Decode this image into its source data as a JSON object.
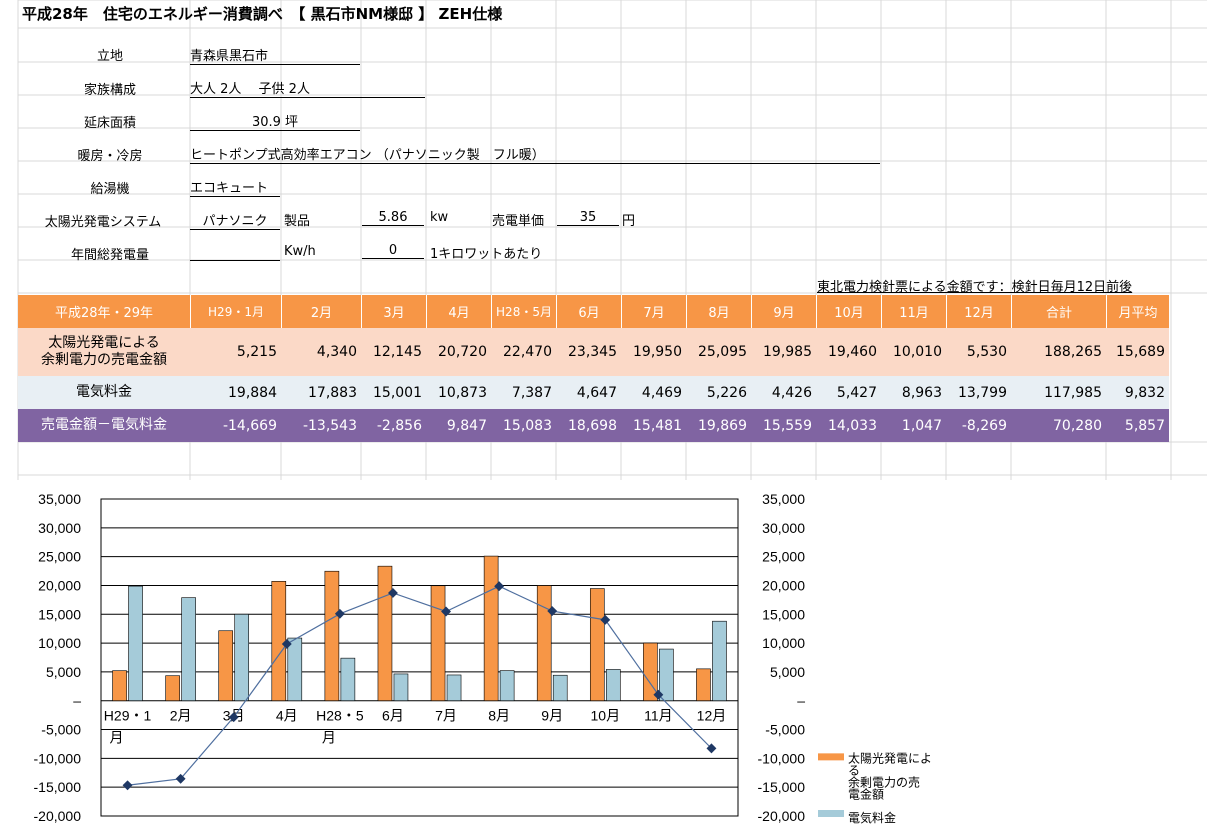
{
  "title": "平成28年　住宅のエネルギー消費調べ　【 黒石市NM様邸 】 ZEH仕様",
  "info": {
    "location_label": "立地",
    "location_value": "青森県黒石市",
    "family_label": "家族構成",
    "family_value": "大人 2人　 子供 2人",
    "area_label": "延床面積",
    "area_value": "30.9 坪",
    "heating_label": "暖房・冷房",
    "heating_value": "ヒートポンプ式高効率エアコン （パナソニック製　フル暖）",
    "water_label": "給湯機",
    "water_value": "エコキュート",
    "solar_label": "太陽光発電システム",
    "solar_maker": "パナソニク",
    "solar_product": "製品",
    "solar_kw": "5.86",
    "solar_kw_unit": "kw",
    "price_label": "売電単価",
    "price_value": "35",
    "price_unit": "円",
    "annual_label": "年間総発電量",
    "annual_unit": "Kw/h",
    "annual_value": "0",
    "annual_note": "1キロワットあたり"
  },
  "note": "東北電力検針票による金額です：検針日毎月12日前後",
  "table": {
    "header_label": "平成28年・29年",
    "months": [
      "H29・1月",
      "2月",
      "3月",
      "4月",
      "H28・5月",
      "6月",
      "7月",
      "8月",
      "9月",
      "10月",
      "11月",
      "12月",
      "合計",
      "月平均"
    ],
    "rows": [
      {
        "label1": "太陽光発電による",
        "label2": "余剰電力の売電金額",
        "values": [
          "5,215",
          "4,340",
          "12,145",
          "20,720",
          "22,470",
          "23,345",
          "19,950",
          "25,095",
          "19,985",
          "19,460",
          "10,010",
          "5,530",
          "188,265",
          "15,689"
        ]
      },
      {
        "label1": "電気料金",
        "label2": "",
        "values": [
          "19,884",
          "17,883",
          "15,001",
          "10,873",
          "7,387",
          "4,647",
          "4,469",
          "5,226",
          "4,426",
          "5,427",
          "8,963",
          "13,799",
          "117,985",
          "9,832"
        ]
      },
      {
        "label1": "売電金額－電気料金",
        "label2": "",
        "values": [
          "-14,669",
          "-13,543",
          "-2,856",
          "9,847",
          "15,083",
          "18,698",
          "15,481",
          "19,869",
          "15,559",
          "14,033",
          "1,047",
          "-8,269",
          "70,280",
          "5,857"
        ]
      }
    ]
  },
  "colors": {
    "orange": "#f79646",
    "blue": "#a5cbd9",
    "purple": "#8064a2",
    "line": "#1f3864"
  },
  "chart_data": {
    "type": "bar",
    "categories": [
      "H29・1月",
      "2月",
      "3月",
      "4月",
      "H28・5月",
      "6月",
      "7月",
      "8月",
      "9月",
      "10月",
      "11月",
      "12月"
    ],
    "series": [
      {
        "name": "太陽光発電による余剰電力の売電金額",
        "type": "bar",
        "values": [
          5215,
          4340,
          12145,
          20720,
          22470,
          23345,
          19950,
          25095,
          19985,
          19460,
          10010,
          5530
        ]
      },
      {
        "name": "電気料金",
        "type": "bar",
        "values": [
          19884,
          17883,
          15001,
          10873,
          7387,
          4647,
          4469,
          5226,
          4426,
          5427,
          8963,
          13799
        ]
      },
      {
        "name": "",
        "type": "line",
        "values": [
          -14669,
          -13543,
          -2856,
          9847,
          15083,
          18698,
          15481,
          19869,
          15559,
          14033,
          1047,
          -8269
        ]
      }
    ],
    "ylim": [
      -20000,
      35000
    ],
    "yticks": [
      "35,000",
      "30,000",
      "25,000",
      "20,000",
      "15,000",
      "10,000",
      "5,000",
      "–",
      "-5,000",
      "-10,000",
      "-15,000",
      "-20,000"
    ],
    "legend": [
      "太陽光発電による余剰電力の売電金額",
      "電気料金"
    ],
    "legend_position": "bottom-right",
    "grid": true
  }
}
